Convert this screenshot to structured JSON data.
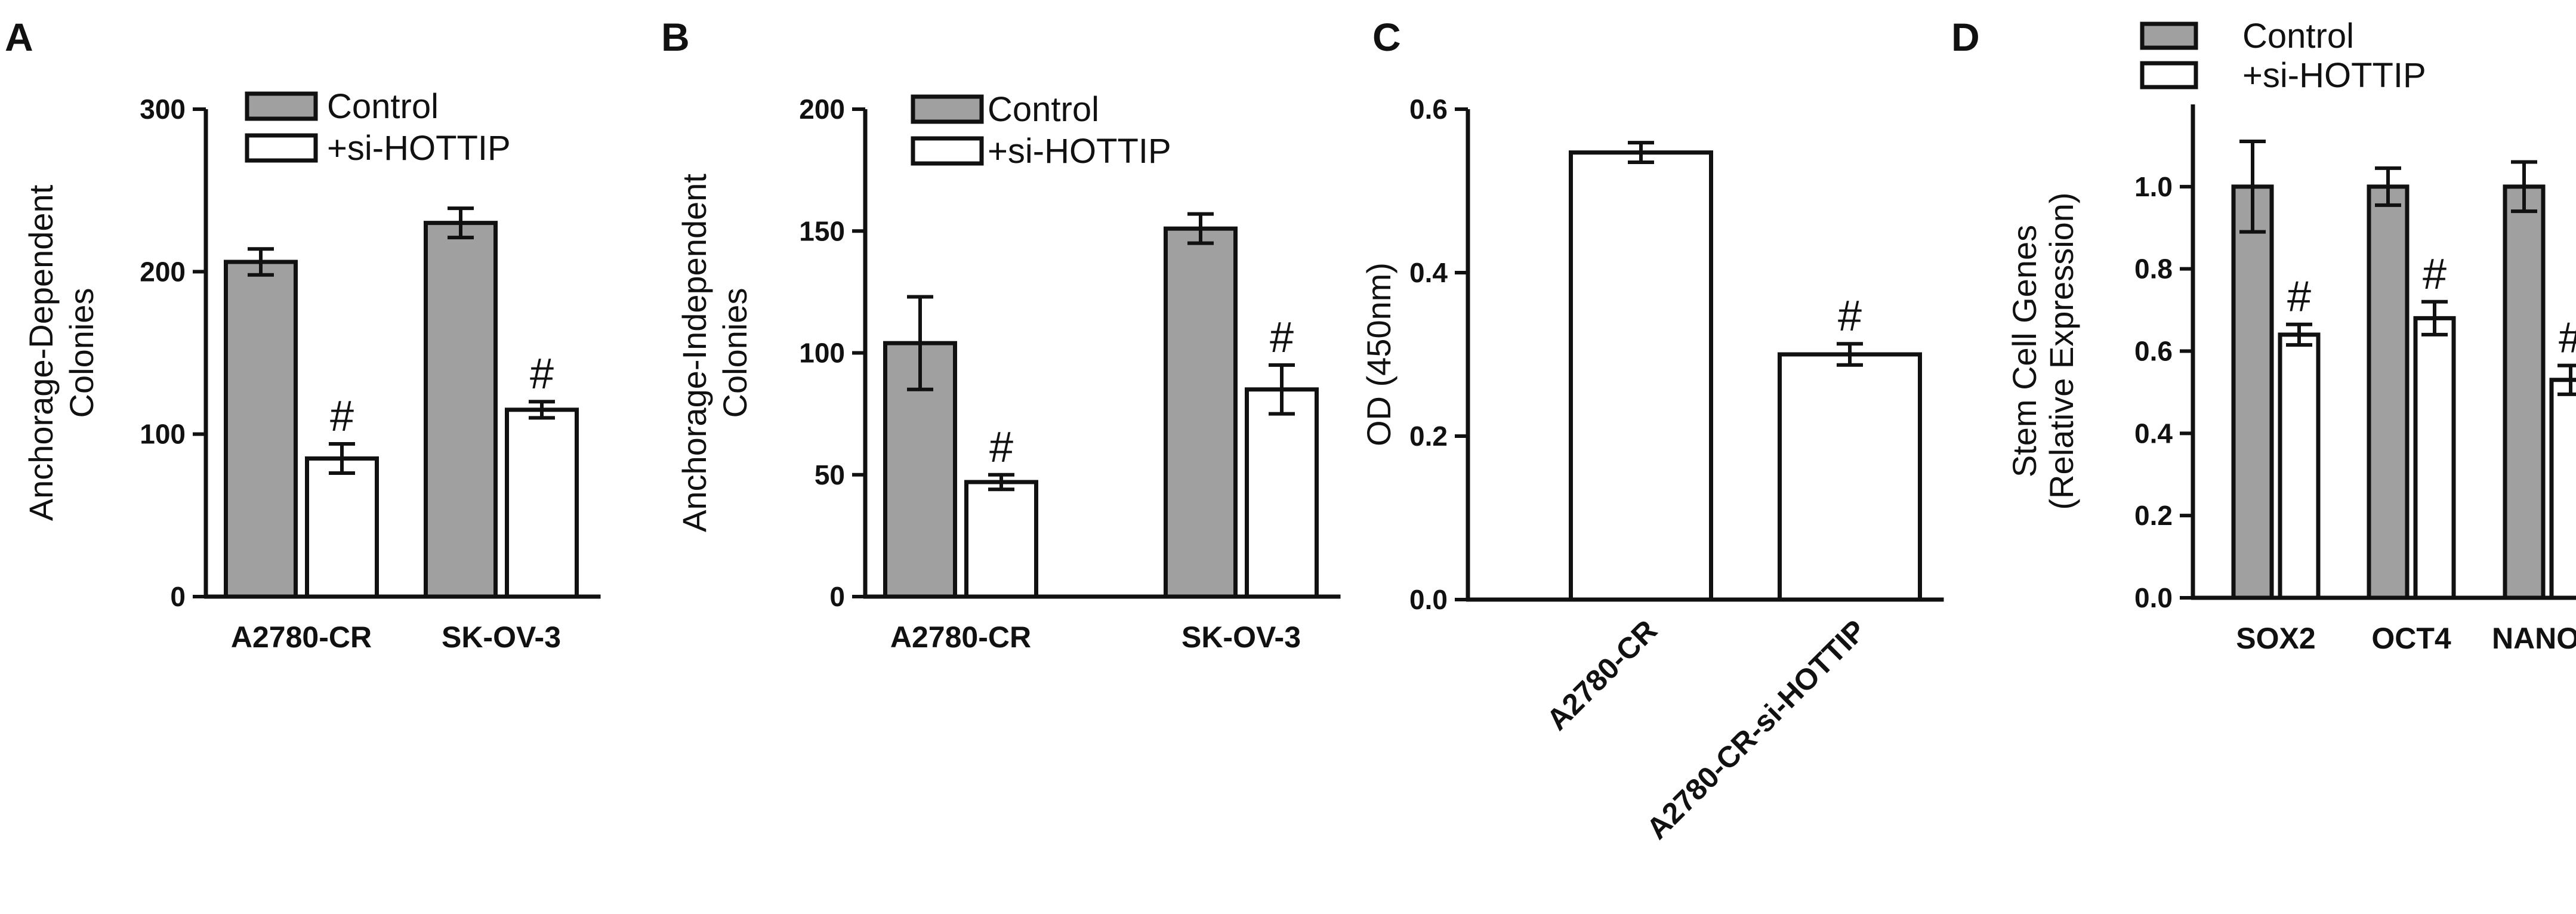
{
  "colors": {
    "control": "#a0a0a0",
    "treated": "#ffffff",
    "stroke": "#111111"
  },
  "chart_data": [
    {
      "panel": "A",
      "type": "bar",
      "ylabel_lines": [
        "Anchorage-Dependent",
        "Colonies"
      ],
      "ylim": [
        0,
        300
      ],
      "yticks": [
        0,
        100,
        200,
        300
      ],
      "tick_decimals": 0,
      "categories": [
        "A2780-CR",
        "SK-OV-3"
      ],
      "legend": "top-right",
      "series": [
        {
          "name": "Control",
          "color": "#a0a0a0",
          "values": [
            206,
            230
          ],
          "errors": [
            8,
            9
          ],
          "marks": [
            "",
            ""
          ]
        },
        {
          "name": "+si-HOTTIP",
          "color": "#ffffff",
          "values": [
            85,
            115
          ],
          "errors": [
            9,
            5
          ],
          "marks": [
            "#",
            "#"
          ]
        }
      ]
    },
    {
      "panel": "B",
      "type": "bar",
      "ylabel_lines": [
        "Anchorage-Independent",
        "Colonies"
      ],
      "ylim": [
        0,
        200
      ],
      "yticks": [
        0,
        50,
        100,
        150,
        200
      ],
      "tick_decimals": 0,
      "categories": [
        "A2780-CR",
        "SK-OV-3"
      ],
      "legend": "top-right",
      "series": [
        {
          "name": "Control",
          "color": "#a0a0a0",
          "values": [
            104,
            151
          ],
          "errors": [
            19,
            6
          ],
          "marks": [
            "",
            ""
          ]
        },
        {
          "name": "+si-HOTTIP",
          "color": "#ffffff",
          "values": [
            47,
            85
          ],
          "errors": [
            3,
            10
          ],
          "marks": [
            "#",
            "#"
          ]
        }
      ]
    },
    {
      "panel": "C",
      "type": "bar",
      "ylabel_lines": [
        "OD (450nm)"
      ],
      "ylim": [
        0,
        0.6
      ],
      "yticks": [
        0.0,
        0.2,
        0.4,
        0.6
      ],
      "tick_decimals": 1,
      "categories": [
        "A2780-CR",
        "A2780-CR-si-HOTTIP"
      ],
      "rotate_categories": true,
      "legend": "none",
      "series": [
        {
          "name": "",
          "color": "#ffffff",
          "values": [
            0.547,
            0.3
          ],
          "errors": [
            0.012,
            0.013
          ],
          "marks": [
            "",
            "#"
          ]
        }
      ]
    },
    {
      "panel": "D",
      "type": "bar",
      "ylabel_lines": [
        "Stem Cell Genes",
        "(Relative Expression)"
      ],
      "ylim": [
        0,
        1.2
      ],
      "yticks": [
        0.0,
        0.2,
        0.4,
        0.6,
        0.8,
        1.0
      ],
      "tick_decimals": 1,
      "categories": [
        "SOX2",
        "OCT4",
        "NANOG"
      ],
      "legend": "top",
      "series": [
        {
          "name": "Control",
          "color": "#a0a0a0",
          "values": [
            1.0,
            1.0,
            1.0
          ],
          "errors": [
            0.11,
            0.045,
            0.06
          ],
          "marks": [
            "",
            "",
            ""
          ]
        },
        {
          "name": "+si-HOTTIP",
          "color": "#ffffff",
          "values": [
            0.64,
            0.68,
            0.53
          ],
          "errors": [
            0.025,
            0.04,
            0.035
          ],
          "marks": [
            "#",
            "#",
            "#"
          ]
        }
      ]
    }
  ]
}
